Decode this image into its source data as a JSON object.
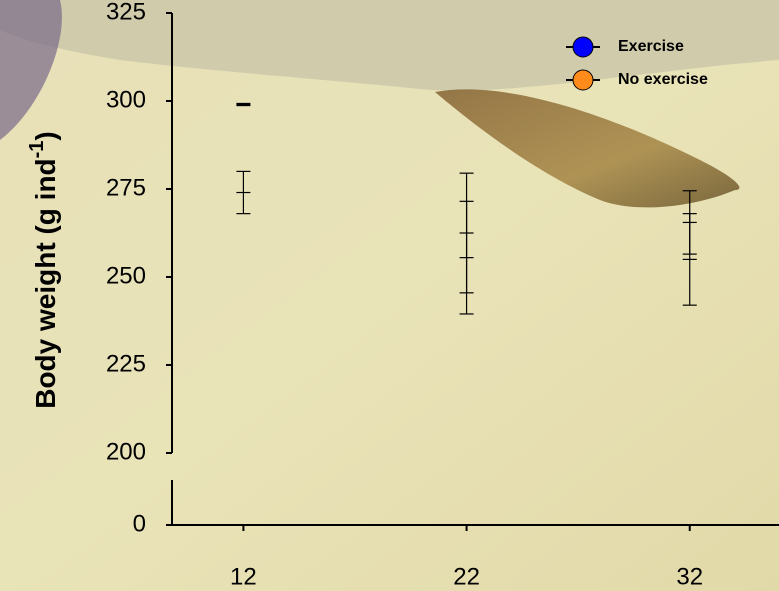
{
  "chart_data": {
    "type": "errorbar",
    "ylabel": [
      "Body weight (g ind",
      "-1",
      ")"
    ],
    "x": [
      12,
      22,
      32
    ],
    "xlim": [
      8.8,
      36
    ],
    "xticks": [
      12,
      22,
      32
    ],
    "ylim": [
      200,
      325
    ],
    "yticks": [
      200,
      225,
      250,
      275,
      300,
      325
    ],
    "lower_yticks": [
      0
    ],
    "series": [
      {
        "name": "Exercise",
        "color": "#0000ff",
        "values": [
          299,
          262.5,
          265.5
        ],
        "errors": [
          0.3,
          17,
          9
        ]
      },
      {
        "name": "No exercise",
        "color": "#ff8c1a",
        "values": [
          274,
          255.5,
          255
        ],
        "errors": [
          6,
          16,
          13
        ]
      }
    ]
  }
}
